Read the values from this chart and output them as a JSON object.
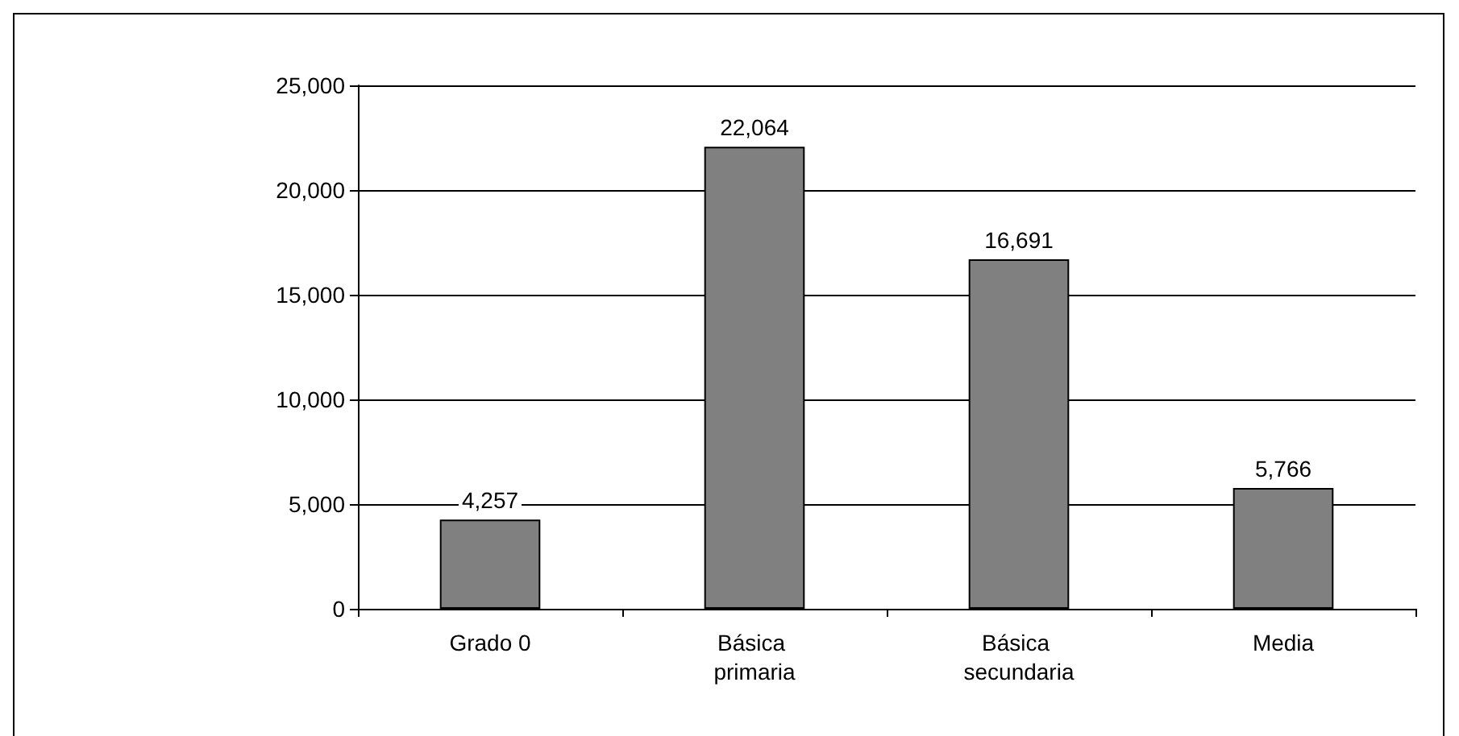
{
  "chart_data": {
    "type": "bar",
    "categories": [
      "Grado 0",
      "Básica primaria",
      "Básica secundaria",
      "Media"
    ],
    "values": [
      4257,
      22064,
      16691,
      5766
    ],
    "value_labels": [
      "4,257",
      "22,064",
      "16,691",
      "5,766"
    ],
    "color": "#808080",
    "ylim": [
      0,
      25000
    ],
    "yticks": [
      {
        "value": 0,
        "label": "0"
      },
      {
        "value": 5000,
        "label": "5,000"
      },
      {
        "value": 10000,
        "label": "10,000"
      },
      {
        "value": 15000,
        "label": "15,000"
      },
      {
        "value": 20000,
        "label": "20,000"
      },
      {
        "value": 25000,
        "label": "25,000"
      }
    ],
    "grid": "y"
  }
}
